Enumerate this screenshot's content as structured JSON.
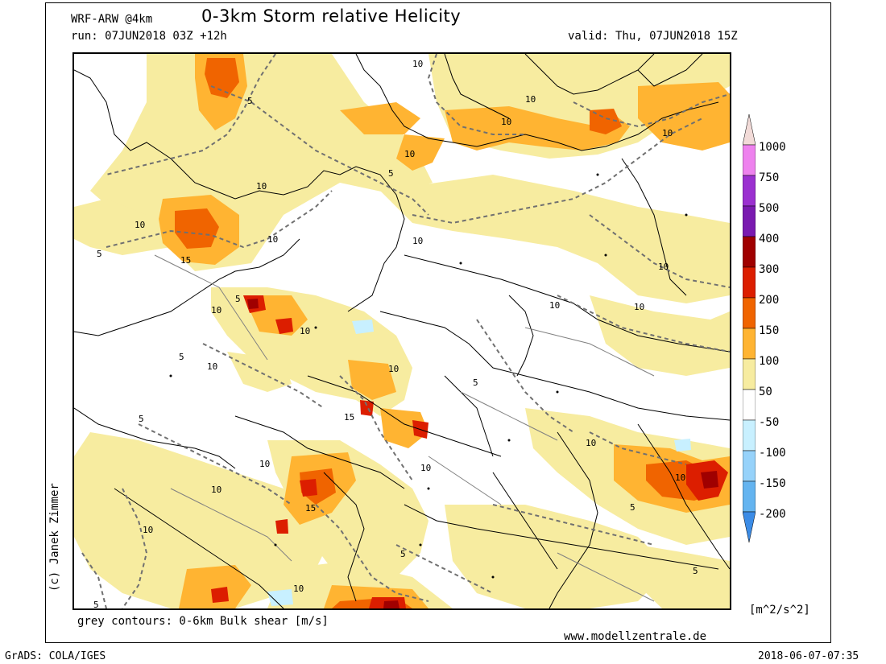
{
  "header": {
    "model": "WRF-ARW @4km",
    "title": "0-3km Storm relative Helicity",
    "run": "run: 07JUN2018 03Z +12h",
    "valid": "valid: Thu, 07JUN2018 15Z"
  },
  "footer": {
    "copyright": "(c) Janek Zimmer",
    "contours_note": "grey contours: 0-6km Bulk shear [m/s]",
    "website": "www.modellzentrale.de",
    "grads": "GrADS: COLA/IGES",
    "timestamp": "2018-06-07-07:35"
  },
  "legend": {
    "units": "[m^2/s^2]",
    "levels": [
      "1000",
      "750",
      "500",
      "400",
      "300",
      "200",
      "150",
      "100",
      "50",
      "-50",
      "-100",
      "-150",
      "-200"
    ],
    "colors": {
      "top_cap": "#f2dbd8",
      "1000_750": "#ee82ee",
      "750_500": "#9b30d0",
      "500_400": "#7a1ab0",
      "400_300": "#a00000",
      "300_200": "#dc1e00",
      "200_150": "#f06400",
      "150_100": "#ffb432",
      "100_50": "#f7eca0",
      "50_-50": "#ffffff",
      "-50_-100": "#c8f0ff",
      "-100_-150": "#96d2fa",
      "-150_-200": "#64b4f0",
      "bottom_cap": "#3c8ce6"
    }
  },
  "map": {
    "contour_labels": [
      "5",
      "10",
      "15"
    ]
  }
}
